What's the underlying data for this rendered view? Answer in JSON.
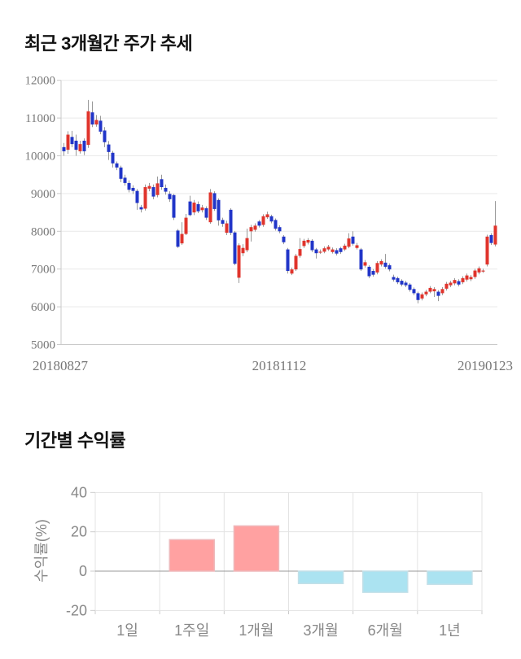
{
  "price_section": {
    "title": "최근 3개월간 주가 추세"
  },
  "returns_section": {
    "title": "기간별 수익률"
  },
  "chart_data": [
    {
      "type": "candlestick",
      "title": "최근 3개월간 주가 추세",
      "ylim": [
        5000,
        12000
      ],
      "y_ticks": [
        12000,
        11000,
        10000,
        9000,
        8000,
        7000,
        6000,
        5000
      ],
      "x_labels": [
        "20180827",
        "20181112",
        "20190123"
      ],
      "grid": true,
      "colors": {
        "up": "#e0342c",
        "down": "#2135c8",
        "wick": "#999999",
        "grid": "#e9e9e9",
        "axis": "#c9c9c9",
        "text": "#777777"
      },
      "candles_ohlc": [
        [
          10230,
          10340,
          10000,
          10120
        ],
        [
          10160,
          10650,
          10050,
          10560
        ],
        [
          10500,
          10660,
          10230,
          10310
        ],
        [
          10400,
          10560,
          10000,
          10160
        ],
        [
          10120,
          10400,
          10060,
          10310
        ],
        [
          10400,
          10460,
          10020,
          10120
        ],
        [
          10290,
          11480,
          10210,
          11180
        ],
        [
          11150,
          11440,
          10760,
          10830
        ],
        [
          10830,
          11080,
          10770,
          10950
        ],
        [
          10930,
          11060,
          10570,
          10640
        ],
        [
          10670,
          10760,
          10230,
          10360
        ],
        [
          10300,
          10390,
          9890,
          10100
        ],
        [
          10080,
          10130,
          9690,
          9800
        ],
        [
          9800,
          9850,
          9620,
          9690
        ],
        [
          9690,
          9740,
          9300,
          9390
        ],
        [
          9420,
          9500,
          9210,
          9280
        ],
        [
          9280,
          9350,
          9030,
          9100
        ],
        [
          9150,
          9220,
          8990,
          9070
        ],
        [
          9070,
          9120,
          8570,
          8750
        ],
        [
          8640,
          8700,
          8500,
          8580
        ],
        [
          8600,
          9240,
          8550,
          9170
        ],
        [
          9130,
          9280,
          9060,
          9200
        ],
        [
          9170,
          9240,
          8850,
          8920
        ],
        [
          8960,
          9450,
          8900,
          9270
        ],
        [
          9380,
          9500,
          9100,
          9170
        ],
        [
          9150,
          9240,
          8970,
          9050
        ],
        [
          8990,
          9060,
          8780,
          8850
        ],
        [
          8960,
          8990,
          8300,
          8360
        ],
        [
          8020,
          8060,
          7560,
          7590
        ],
        [
          7680,
          8240,
          7640,
          7930
        ],
        [
          7930,
          8460,
          7900,
          8360
        ],
        [
          8790,
          8940,
          8400,
          8430
        ],
        [
          8500,
          8830,
          8430,
          8760
        ],
        [
          8720,
          8790,
          8480,
          8530
        ],
        [
          8560,
          8700,
          8500,
          8630
        ],
        [
          8610,
          8660,
          8300,
          8360
        ],
        [
          8240,
          9120,
          8200,
          9030
        ],
        [
          9010,
          9060,
          8540,
          8590
        ],
        [
          8830,
          8870,
          8150,
          8290
        ],
        [
          8300,
          8360,
          8120,
          8200
        ],
        [
          7960,
          8280,
          7900,
          8210
        ],
        [
          8570,
          8610,
          7900,
          7960
        ],
        [
          7970,
          8010,
          7100,
          7140
        ],
        [
          6770,
          7680,
          6630,
          7630
        ],
        [
          7420,
          7660,
          7340,
          7560
        ],
        [
          7500,
          8070,
          7450,
          7820
        ],
        [
          8000,
          8170,
          7730,
          8110
        ],
        [
          8040,
          8210,
          7990,
          8150
        ],
        [
          8260,
          8300,
          8100,
          8150
        ],
        [
          8170,
          8450,
          8120,
          8400
        ],
        [
          8370,
          8520,
          8330,
          8450
        ],
        [
          8400,
          8440,
          8210,
          8260
        ],
        [
          8300,
          8340,
          8020,
          8070
        ],
        [
          8110,
          8160,
          7950,
          8000
        ],
        [
          7860,
          7900,
          7660,
          7710
        ],
        [
          7520,
          7560,
          6880,
          6950
        ],
        [
          6880,
          7040,
          6840,
          6990
        ],
        [
          6990,
          7400,
          6950,
          7350
        ],
        [
          7350,
          7820,
          7300,
          7530
        ],
        [
          7610,
          7800,
          7560,
          7750
        ],
        [
          7700,
          7820,
          7650,
          7770
        ],
        [
          7750,
          7790,
          7450,
          7500
        ],
        [
          7520,
          7560,
          7280,
          7420
        ],
        [
          7440,
          7520,
          7400,
          7460
        ],
        [
          7460,
          7600,
          7420,
          7550
        ],
        [
          7520,
          7640,
          7480,
          7590
        ],
        [
          7450,
          7570,
          7410,
          7520
        ],
        [
          7500,
          7550,
          7360,
          7410
        ],
        [
          7550,
          7590,
          7400,
          7450
        ],
        [
          7520,
          7670,
          7480,
          7620
        ],
        [
          7590,
          7950,
          7550,
          7810
        ],
        [
          7860,
          8000,
          7620,
          7670
        ],
        [
          7560,
          7690,
          7520,
          7630
        ],
        [
          7520,
          7560,
          6950,
          6990
        ],
        [
          7090,
          7240,
          7040,
          7180
        ],
        [
          7060,
          7100,
          6760,
          6810
        ],
        [
          6950,
          7000,
          6800,
          6850
        ],
        [
          6910,
          7210,
          6860,
          7160
        ],
        [
          7120,
          7260,
          7070,
          7210
        ],
        [
          7170,
          7400,
          7010,
          7060
        ],
        [
          7100,
          7150,
          6940,
          6990
        ],
        [
          6790,
          6850,
          6670,
          6720
        ],
        [
          6760,
          6800,
          6600,
          6650
        ],
        [
          6690,
          6730,
          6540,
          6590
        ],
        [
          6640,
          6690,
          6520,
          6570
        ],
        [
          6590,
          6630,
          6400,
          6450
        ],
        [
          6470,
          6510,
          6310,
          6360
        ],
        [
          6360,
          6400,
          6090,
          6180
        ],
        [
          6220,
          6380,
          6170,
          6330
        ],
        [
          6330,
          6450,
          6280,
          6400
        ],
        [
          6400,
          6550,
          6360,
          6500
        ],
        [
          6410,
          6520,
          6260,
          6470
        ],
        [
          6400,
          6440,
          6150,
          6290
        ],
        [
          6360,
          6520,
          6310,
          6470
        ],
        [
          6480,
          6660,
          6430,
          6610
        ],
        [
          6570,
          6690,
          6520,
          6640
        ],
        [
          6620,
          6760,
          6570,
          6710
        ],
        [
          6680,
          6730,
          6540,
          6590
        ],
        [
          6650,
          6810,
          6600,
          6760
        ],
        [
          6720,
          6880,
          6670,
          6830
        ],
        [
          6730,
          6840,
          6680,
          6790
        ],
        [
          6790,
          7010,
          6740,
          6960
        ],
        [
          6910,
          7070,
          6860,
          7020
        ],
        [
          6960,
          7010,
          6900,
          6960
        ],
        [
          7120,
          7910,
          7070,
          7860
        ],
        [
          7900,
          7950,
          7640,
          7690
        ],
        [
          7650,
          8800,
          7600,
          8150
        ]
      ]
    },
    {
      "type": "bar",
      "categories": [
        "1일",
        "1주일",
        "1개월",
        "3개월",
        "6개월",
        "1년"
      ],
      "values": [
        0,
        16,
        23,
        -6.3,
        -10.8,
        -6.7
      ],
      "ylabel": "수익률(%)",
      "xlabel": "",
      "y_ticks": [
        40,
        20,
        0,
        -20
      ],
      "ylim": [
        -20,
        40
      ],
      "grid": true,
      "legend": "none",
      "colors": {
        "positive": "#ffa1a1",
        "positive_border": "#eeb9bb",
        "negative": "#abe3f1",
        "negative_border": "#c2dfe8",
        "zero_line": "#999999",
        "grid": "#e3e3e3",
        "axis": "#cccccc",
        "text": "#888888"
      }
    }
  ]
}
